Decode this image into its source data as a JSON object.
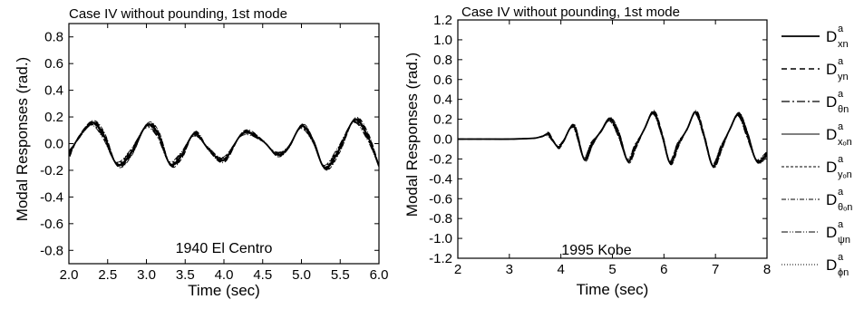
{
  "chart_data": [
    {
      "type": "line",
      "title": "Case IV without pounding, 1st mode",
      "xlabel": "Time (sec)",
      "ylabel": "Modal Responses (rad.)",
      "annotation": "1940 El Centro",
      "xlim": [
        2.0,
        6.0
      ],
      "ylim": [
        -0.9,
        0.9
      ],
      "xticks": [
        "2.0",
        "2.5",
        "3.0",
        "3.5",
        "4.0",
        "4.5",
        "5.0",
        "5.5",
        "6.0"
      ],
      "yticks": [
        "0.8",
        "0.6",
        "0.4",
        "0.2",
        "0.0",
        "-0.2",
        "-0.4",
        "-0.6",
        "-0.8"
      ],
      "series": [
        {
          "key": "xn",
          "x": [
            2.0,
            2.12,
            2.3,
            2.45,
            2.62,
            2.8,
            3.0,
            3.15,
            3.3,
            3.45,
            3.62,
            3.8,
            4.0,
            4.25,
            4.5,
            4.68,
            4.83,
            5.0,
            5.15,
            5.3,
            5.48,
            5.68,
            5.85,
            6.0
          ],
          "y": [
            -0.08,
            0.04,
            0.155,
            0.06,
            -0.155,
            -0.07,
            0.135,
            0.07,
            -0.15,
            -0.09,
            0.075,
            -0.04,
            -0.12,
            0.08,
            0.02,
            -0.08,
            -0.03,
            0.13,
            0.02,
            -0.18,
            -0.05,
            0.175,
            0.06,
            -0.17
          ]
        }
      ]
    },
    {
      "type": "line",
      "title": "Case IV without pounding, 1st mode",
      "xlabel": "Time (sec)",
      "ylabel": "Modal Responses (rad.)",
      "annotation": "1995 Kobe",
      "xlim": [
        2,
        8
      ],
      "ylim": [
        -1.2,
        1.2
      ],
      "xticks": [
        "2",
        "3",
        "4",
        "5",
        "6",
        "7",
        "8"
      ],
      "yticks": [
        "1.2",
        "1.0",
        "0.8",
        "0.6",
        "0.4",
        "0.2",
        "0.0",
        "-0.2",
        "-0.4",
        "-0.6",
        "-0.8",
        "-1.0",
        "-1.2"
      ],
      "series": [
        {
          "key": "xn",
          "x": [
            2.0,
            2.5,
            3.0,
            3.3,
            3.5,
            3.65,
            3.75,
            3.85,
            3.95,
            4.05,
            4.25,
            4.45,
            4.6,
            4.78,
            4.95,
            5.12,
            5.3,
            5.45,
            5.62,
            5.8,
            5.97,
            6.12,
            6.28,
            6.45,
            6.62,
            6.78,
            6.95,
            7.12,
            7.28,
            7.45,
            7.62,
            7.8,
            8.0
          ],
          "y": [
            0.0,
            0.0,
            0.0,
            0.005,
            0.01,
            0.03,
            0.05,
            -0.02,
            -0.08,
            -0.02,
            0.13,
            -0.2,
            -0.05,
            0.08,
            0.2,
            0.05,
            -0.22,
            -0.07,
            0.1,
            0.27,
            0.03,
            -0.24,
            -0.05,
            0.1,
            0.27,
            0.03,
            -0.27,
            -0.08,
            0.1,
            0.25,
            0.04,
            -0.22,
            -0.15
          ]
        }
      ]
    }
  ],
  "legend": [
    {
      "base": "D",
      "sup": "a",
      "sub": "xn",
      "dash": "",
      "width": 1.8
    },
    {
      "base": "D",
      "sup": "a",
      "sub": "yn",
      "dash": "6,4",
      "width": 1.4
    },
    {
      "base": "D",
      "sup": "a",
      "sub": "θn",
      "dash": "9,3,2,3",
      "width": 1.2
    },
    {
      "base": "D",
      "sup": "a",
      "sub": "xₒn",
      "dash": "",
      "width": 1.0
    },
    {
      "base": "D",
      "sup": "a",
      "sub": "yₒn",
      "dash": "3,2",
      "width": 1.0
    },
    {
      "base": "D",
      "sup": "a",
      "sub": "θₒn",
      "dash": "5,2,1,2",
      "width": 0.9
    },
    {
      "base": "D",
      "sup": "a",
      "sub": "ψn",
      "dash": "7,2,1,2,1,2",
      "width": 0.9
    },
    {
      "base": "D",
      "sup": "a",
      "sub": "ϕn",
      "dash": "1,2",
      "width": 0.9
    }
  ]
}
